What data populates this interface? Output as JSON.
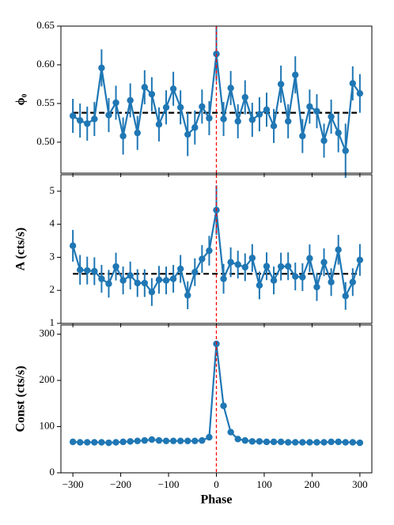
{
  "chart_data": [
    {
      "type": "line",
      "ylabel": "ϕ₀",
      "color": "#1f77b4",
      "x": [
        -300,
        -285,
        -270,
        -255,
        -240,
        -225,
        -210,
        -195,
        -180,
        -165,
        -150,
        -135,
        -120,
        -105,
        -90,
        -75,
        -60,
        -45,
        -30,
        -15,
        0,
        15,
        30,
        45,
        60,
        75,
        90,
        105,
        120,
        135,
        150,
        165,
        180,
        195,
        210,
        225,
        240,
        255,
        270,
        285,
        300
      ],
      "values": [
        0.534,
        0.528,
        0.524,
        0.53,
        0.596,
        0.535,
        0.551,
        0.508,
        0.554,
        0.512,
        0.571,
        0.562,
        0.523,
        0.545,
        0.569,
        0.545,
        0.51,
        0.519,
        0.546,
        0.531,
        0.614,
        0.53,
        0.57,
        0.527,
        0.558,
        0.529,
        0.536,
        0.542,
        0.521,
        0.575,
        0.527,
        0.587,
        0.508,
        0.546,
        0.54,
        0.502,
        0.533,
        0.512,
        0.489,
        0.576,
        0.563
      ],
      "errors": [
        0.022,
        0.022,
        0.022,
        0.022,
        0.024,
        0.022,
        0.022,
        0.024,
        0.022,
        0.022,
        0.022,
        0.022,
        0.022,
        0.022,
        0.022,
        0.022,
        0.028,
        0.022,
        0.022,
        0.022,
        0.035,
        0.022,
        0.022,
        0.022,
        0.022,
        0.022,
        0.022,
        0.022,
        0.022,
        0.024,
        0.022,
        0.024,
        0.022,
        0.022,
        0.022,
        0.022,
        0.022,
        0.025,
        0.035,
        0.022,
        0.025
      ],
      "reference_line": 0.538,
      "vline": 0,
      "xlim": [
        -325,
        325
      ],
      "xticks": [
        -300,
        -200,
        -100,
        0,
        100,
        200,
        300
      ],
      "ylim": [
        0.46,
        0.65
      ],
      "yticks": [
        {
          "value": 0.5,
          "label": "0.50"
        },
        {
          "value": 0.55,
          "label": "0.55"
        },
        {
          "value": 0.6,
          "label": "0.60"
        },
        {
          "value": 0.65,
          "label": "0.65"
        }
      ]
    },
    {
      "type": "line",
      "ylabel": "A (cts/s)",
      "color": "#1f77b4",
      "x": [
        -300,
        -285,
        -270,
        -255,
        -240,
        -225,
        -210,
        -195,
        -180,
        -165,
        -150,
        -135,
        -120,
        -105,
        -90,
        -75,
        -60,
        -45,
        -30,
        -15,
        0,
        15,
        30,
        45,
        60,
        75,
        90,
        105,
        120,
        135,
        150,
        165,
        180,
        195,
        210,
        225,
        240,
        255,
        270,
        285,
        300
      ],
      "values": [
        3.35,
        2.62,
        2.6,
        2.58,
        2.35,
        2.2,
        2.72,
        2.3,
        2.45,
        2.22,
        2.22,
        1.95,
        2.32,
        2.3,
        2.35,
        2.65,
        1.85,
        2.55,
        2.95,
        3.2,
        4.43,
        2.35,
        2.85,
        2.78,
        2.7,
        2.98,
        2.15,
        2.73,
        2.3,
        2.72,
        2.73,
        2.42,
        2.4,
        2.97,
        2.1,
        2.85,
        2.25,
        3.23,
        1.83,
        2.25,
        2.92
      ],
      "errors": [
        0.48,
        0.45,
        0.42,
        0.42,
        0.42,
        0.42,
        0.42,
        0.42,
        0.42,
        0.42,
        0.42,
        0.42,
        0.42,
        0.42,
        0.42,
        0.42,
        0.42,
        0.42,
        0.42,
        0.45,
        0.75,
        0.45,
        0.45,
        0.42,
        0.42,
        0.42,
        0.42,
        0.42,
        0.42,
        0.42,
        0.42,
        0.42,
        0.42,
        0.42,
        0.42,
        0.42,
        0.42,
        0.45,
        0.42,
        0.42,
        0.48
      ],
      "reference_line": 2.5,
      "vline": 0,
      "xlim": [
        -325,
        325
      ],
      "xticks": [
        -300,
        -200,
        -100,
        0,
        100,
        200,
        300
      ],
      "ylim": [
        1,
        5.5
      ],
      "yticks": [
        1,
        2,
        3,
        4,
        5
      ]
    },
    {
      "type": "line",
      "ylabel": "Const (cts/s)",
      "xlabel": "Phase",
      "color": "#1f77b4",
      "x": [
        -300,
        -285,
        -270,
        -255,
        -240,
        -225,
        -210,
        -195,
        -180,
        -165,
        -150,
        -135,
        -120,
        -105,
        -90,
        -75,
        -60,
        -45,
        -30,
        -15,
        0,
        15,
        30,
        45,
        60,
        75,
        90,
        105,
        120,
        135,
        150,
        165,
        180,
        195,
        210,
        225,
        240,
        255,
        270,
        285,
        300
      ],
      "values": [
        67,
        66,
        66,
        66,
        66,
        65,
        66,
        67,
        68,
        69,
        70,
        72,
        70,
        69,
        69,
        69,
        69,
        69,
        70,
        77,
        279,
        145,
        88,
        73,
        70,
        68,
        68,
        67,
        67,
        67,
        66,
        66,
        66,
        66,
        66,
        66,
        67,
        67,
        66,
        66,
        65
      ],
      "vline": 0,
      "xlim": [
        -325,
        325
      ],
      "xticks": [
        {
          "value": -300,
          "label": "−300"
        },
        {
          "value": -200,
          "label": "−200"
        },
        {
          "value": -100,
          "label": "−100"
        },
        0,
        100,
        200,
        300
      ],
      "ylim": [
        0,
        320
      ],
      "yticks": [
        0,
        100,
        200,
        300
      ]
    }
  ]
}
